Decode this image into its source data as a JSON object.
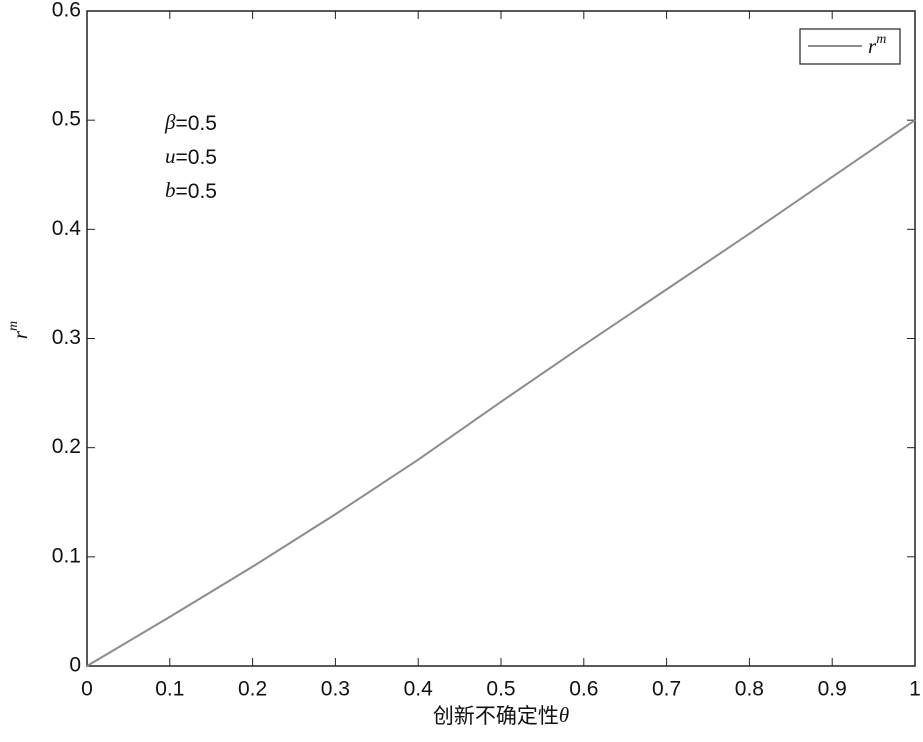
{
  "chart_data": {
    "type": "line",
    "xlabel": {
      "text": "创新不确定性",
      "symbol": "θ"
    },
    "ylabel": {
      "base": "r",
      "sup": "m"
    },
    "annotations": [
      {
        "symbol": "β",
        "text": "=0.5"
      },
      {
        "symbol": "u",
        "text": "=0.5"
      },
      {
        "symbol": "b",
        "text": "=0.5"
      }
    ],
    "x": [
      0,
      0.1,
      0.2,
      0.3,
      0.4,
      0.5,
      0.6,
      0.7,
      0.8,
      0.9,
      1
    ],
    "series": [
      {
        "name": "r",
        "name_sup": "m",
        "color": "#8c8c8c",
        "values": [
          0,
          0.045,
          0.091,
          0.139,
          0.189,
          0.242,
          0.294,
          0.345,
          0.396,
          0.448,
          0.5
        ]
      }
    ],
    "xlim": [
      0,
      1
    ],
    "xticks": [
      0,
      0.1,
      0.2,
      0.3,
      0.4,
      0.5,
      0.6,
      0.7,
      0.8,
      0.9,
      1
    ],
    "ylim": [
      0,
      0.6
    ],
    "yticks": [
      0,
      0.1,
      0.2,
      0.3,
      0.4,
      0.5,
      0.6
    ],
    "grid": false,
    "legend": "upper right"
  }
}
